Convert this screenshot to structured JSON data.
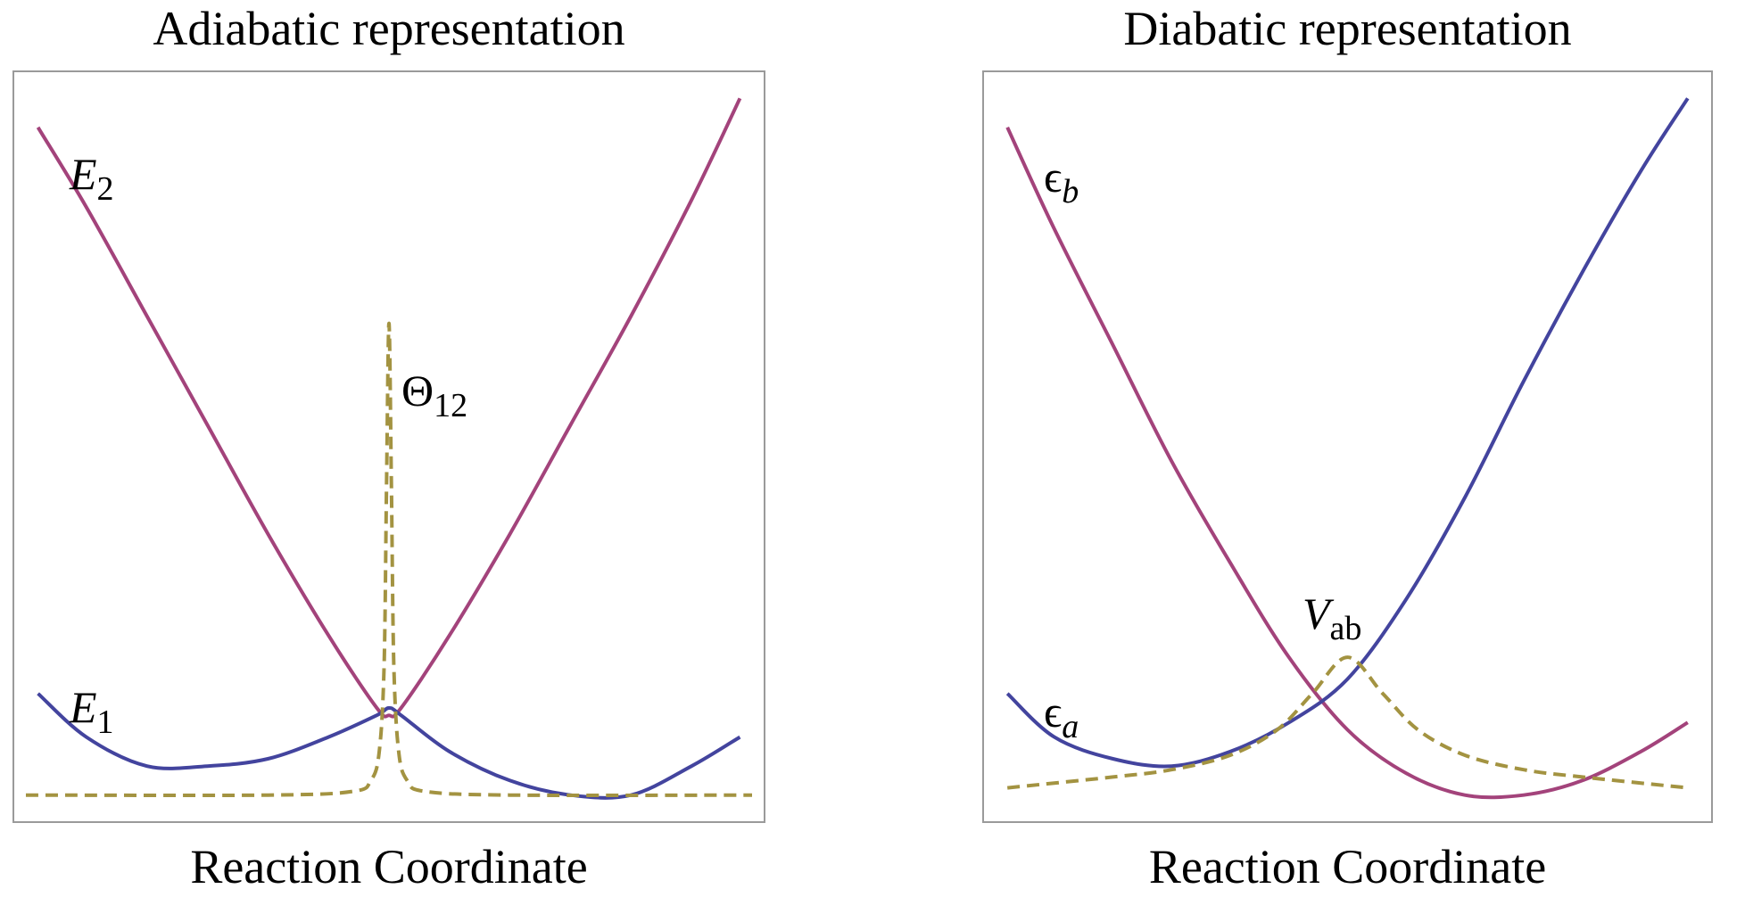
{
  "chart_data": [
    {
      "type": "line",
      "title": "Adiabatic representation",
      "xlabel": "Reaction Coordinate",
      "ylabel": "",
      "xlim": [
        -3,
        3
      ],
      "ylim": [
        0,
        1
      ],
      "ticks": false,
      "series": [
        {
          "name": "E2",
          "label_main": "E",
          "label_sub": "2",
          "color": "#a3437b",
          "style": "solid",
          "x": [
            -2.9,
            -2.5,
            -2.0,
            -1.5,
            -1.0,
            -0.5,
            -0.1,
            0.0,
            0.1,
            0.5,
            1.0,
            1.5,
            2.0,
            2.5,
            2.9
          ],
          "y": [
            0.94,
            0.83,
            0.68,
            0.53,
            0.38,
            0.24,
            0.14,
            0.13,
            0.14,
            0.24,
            0.38,
            0.53,
            0.68,
            0.84,
            0.98
          ]
        },
        {
          "name": "E1",
          "label_main": "E",
          "label_sub": "1",
          "color": "#43449e",
          "style": "solid",
          "x": [
            -2.9,
            -2.5,
            -2.0,
            -1.5,
            -1.0,
            -0.5,
            -0.1,
            0.0,
            0.1,
            0.5,
            1.0,
            1.5,
            2.0,
            2.5,
            2.9
          ],
          "y": [
            0.16,
            0.1,
            0.06,
            0.06,
            0.07,
            0.1,
            0.13,
            0.14,
            0.13,
            0.08,
            0.04,
            0.02,
            0.02,
            0.06,
            0.1
          ]
        },
        {
          "name": "Θ12",
          "label_main": "Θ",
          "label_sub": "12",
          "color": "#a39341",
          "style": "dashed",
          "x": [
            -3.0,
            -1.0,
            -0.3,
            -0.15,
            -0.08,
            -0.04,
            -0.02,
            0.0,
            0.02,
            0.04,
            0.08,
            0.15,
            0.3,
            1.0,
            3.0
          ],
          "y": [
            0.02,
            0.02,
            0.025,
            0.04,
            0.08,
            0.2,
            0.45,
            0.67,
            0.45,
            0.2,
            0.08,
            0.04,
            0.025,
            0.02,
            0.02
          ]
        }
      ]
    },
    {
      "type": "line",
      "title": "Diabatic representation",
      "xlabel": "Reaction Coordinate",
      "ylabel": "",
      "xlim": [
        -3,
        3
      ],
      "ylim": [
        0,
        1
      ],
      "ticks": false,
      "series": [
        {
          "name": "ϵb",
          "label_main": "ϵ",
          "label_sub": "b",
          "color": "#a3437b",
          "style": "solid",
          "x": [
            -2.9,
            -2.5,
            -2.0,
            -1.5,
            -1.0,
            -0.5,
            0.0,
            0.5,
            1.0,
            1.5,
            2.0,
            2.5,
            2.9
          ],
          "y": [
            0.94,
            0.8,
            0.64,
            0.48,
            0.34,
            0.21,
            0.11,
            0.05,
            0.02,
            0.02,
            0.04,
            0.08,
            0.12
          ]
        },
        {
          "name": "ϵa",
          "label_main": "ϵ",
          "label_sub": "a",
          "color": "#43449e",
          "style": "solid",
          "x": [
            -2.9,
            -2.5,
            -2.0,
            -1.5,
            -1.0,
            -0.5,
            0.0,
            0.5,
            1.0,
            1.5,
            2.0,
            2.5,
            2.9
          ],
          "y": [
            0.16,
            0.1,
            0.07,
            0.06,
            0.08,
            0.12,
            0.18,
            0.29,
            0.43,
            0.59,
            0.74,
            0.88,
            0.98
          ]
        },
        {
          "name": "Vab",
          "label_main": "V",
          "label_sub": "ab",
          "color": "#a39341",
          "style": "dashed",
          "x": [
            -2.9,
            -2.0,
            -1.5,
            -1.0,
            -0.6,
            -0.3,
            0.0,
            0.3,
            0.6,
            1.0,
            1.5,
            2.0,
            2.9
          ],
          "y": [
            0.03,
            0.045,
            0.055,
            0.075,
            0.11,
            0.16,
            0.21,
            0.16,
            0.11,
            0.075,
            0.055,
            0.045,
            0.03
          ]
        }
      ]
    }
  ]
}
